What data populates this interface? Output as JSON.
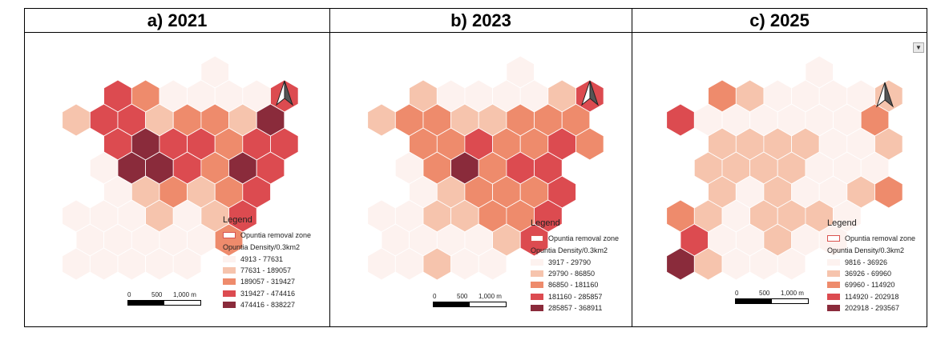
{
  "panels": [
    {
      "title": "a) 2021",
      "legend": {
        "title": "Legend",
        "zone_label": "Opuntia removal zone",
        "subtitle": "Opuntia Density/0.3km2",
        "classes": [
          {
            "label": "4913 - 77631",
            "color": "#fdf2ef"
          },
          {
            "label": "77631 - 189057",
            "color": "#f6c4ad"
          },
          {
            "label": "189057 - 319427",
            "color": "#ee8b6c"
          },
          {
            "label": "319427 - 474416",
            "color": "#dc4b50"
          },
          {
            "label": "474416 - 838227",
            "color": "#8a2b3b"
          }
        ]
      },
      "scale": {
        "zero": "0",
        "mid": "500",
        "max": "1,000 m"
      }
    },
    {
      "title": "b) 2023",
      "legend": {
        "title": "Legend",
        "zone_label": "Opuntia removal zone",
        "subtitle": "Opuntia Density/0.3km2",
        "classes": [
          {
            "label": "3917 - 29790",
            "color": "#fdf2ef"
          },
          {
            "label": "29790 - 86850",
            "color": "#f6c4ad"
          },
          {
            "label": "86850 - 181160",
            "color": "#ee8b6c"
          },
          {
            "label": "181160 - 285857",
            "color": "#dc4b50"
          },
          {
            "label": "285857 - 368911",
            "color": "#8a2b3b"
          }
        ]
      },
      "scale": {
        "zero": "0",
        "mid": "500",
        "max": "1,000 m"
      }
    },
    {
      "title": "c) 2025",
      "legend": {
        "title": "Legend",
        "zone_label": "Opuntia removal zone",
        "subtitle": "Opuntia Density/0.3km2",
        "classes": [
          {
            "label": "9816 - 36926",
            "color": "#fdf2ef"
          },
          {
            "label": "36926 - 69960",
            "color": "#f6c4ad"
          },
          {
            "label": "69960 - 114920",
            "color": "#ee8b6c"
          },
          {
            "label": "114920 - 202918",
            "color": "#dc4b50"
          },
          {
            "label": "202918 - 293567",
            "color": "#8a2b3b"
          }
        ]
      },
      "scale": {
        "zero": "0",
        "mid": "500",
        "max": "1,000 m"
      }
    }
  ],
  "density_class_grid": [
    [
      [
        null,
        null,
        null,
        null,
        null,
        0,
        null,
        null
      ],
      [
        null,
        3,
        2,
        0,
        0,
        0,
        0,
        3
      ],
      [
        1,
        3,
        3,
        1,
        2,
        2,
        1,
        4
      ],
      [
        null,
        3,
        4,
        3,
        3,
        2,
        3,
        3
      ],
      [
        null,
        0,
        4,
        4,
        3,
        2,
        4,
        3
      ],
      [
        null,
        0,
        1,
        2,
        1,
        2,
        3,
        null
      ],
      [
        0,
        0,
        0,
        1,
        0,
        1,
        3,
        null
      ],
      [
        0,
        0,
        0,
        0,
        0,
        2,
        null,
        null
      ],
      [
        0,
        0,
        0,
        0,
        0,
        null,
        null,
        null
      ]
    ],
    [
      [
        null,
        null,
        null,
        null,
        null,
        0,
        null,
        null
      ],
      [
        null,
        1,
        0,
        0,
        0,
        0,
        1,
        3
      ],
      [
        1,
        2,
        2,
        1,
        1,
        2,
        2,
        2
      ],
      [
        null,
        2,
        2,
        3,
        2,
        2,
        3,
        2
      ],
      [
        null,
        0,
        2,
        4,
        2,
        3,
        3,
        null
      ],
      [
        null,
        0,
        1,
        2,
        2,
        2,
        3,
        null
      ],
      [
        0,
        0,
        1,
        1,
        2,
        2,
        3,
        null
      ],
      [
        0,
        0,
        0,
        0,
        1,
        3,
        null,
        null
      ],
      [
        0,
        0,
        1,
        0,
        0,
        null,
        null,
        null
      ]
    ],
    [
      [
        null,
        null,
        null,
        null,
        null,
        0,
        null,
        null
      ],
      [
        null,
        2,
        1,
        0,
        0,
        0,
        0,
        1
      ],
      [
        3,
        0,
        0,
        0,
        0,
        0,
        0,
        2
      ],
      [
        null,
        1,
        1,
        1,
        1,
        0,
        0,
        1
      ],
      [
        null,
        1,
        1,
        1,
        1,
        0,
        0,
        0
      ],
      [
        null,
        1,
        0,
        1,
        0,
        0,
        1,
        2
      ],
      [
        2,
        1,
        0,
        1,
        1,
        1,
        0,
        null
      ],
      [
        3,
        0,
        0,
        1,
        0,
        0,
        null,
        null
      ],
      [
        4,
        1,
        0,
        0,
        0,
        null,
        null,
        null
      ]
    ]
  ]
}
